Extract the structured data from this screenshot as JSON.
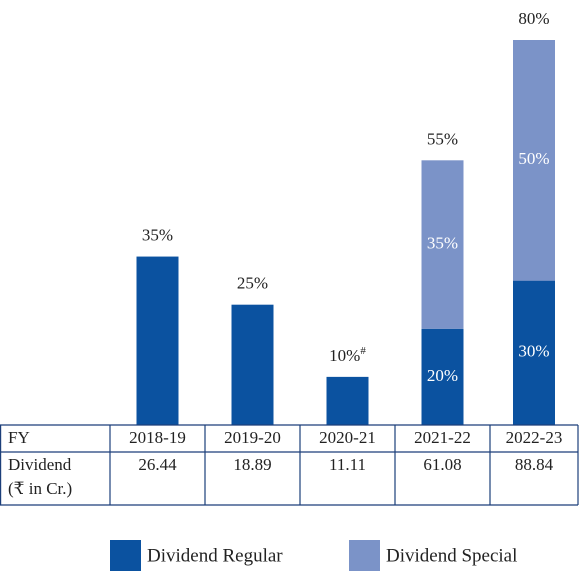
{
  "chart_data": {
    "type": "stacked-bar",
    "categories": [
      "2018-19",
      "2019-20",
      "2020-21",
      "2021-22",
      "2022-23"
    ],
    "series": [
      {
        "name": "Dividend Regular",
        "color": "#0b52a0",
        "values": [
          35,
          25,
          10,
          20,
          30
        ],
        "value_labels": [
          null,
          null,
          null,
          "20%",
          "30%"
        ]
      },
      {
        "name": "Dividend Special",
        "color": "#7b93c8",
        "values": [
          null,
          null,
          null,
          35,
          50
        ],
        "value_labels": [
          null,
          null,
          null,
          "35%",
          "50%"
        ]
      }
    ],
    "total_labels": [
      "35%",
      "25%",
      "10%",
      "55%",
      "80%"
    ],
    "annotations": [
      {
        "category": "2020-21",
        "text": "#"
      }
    ],
    "ylim": [
      0,
      80
    ],
    "table": {
      "row_header": "FY",
      "rows": [
        {
          "label": [
            "Dividend",
            "(₹ in Cr.)"
          ],
          "values": [
            26.44,
            18.89,
            11.11,
            61.08,
            88.84
          ]
        }
      ]
    }
  }
}
